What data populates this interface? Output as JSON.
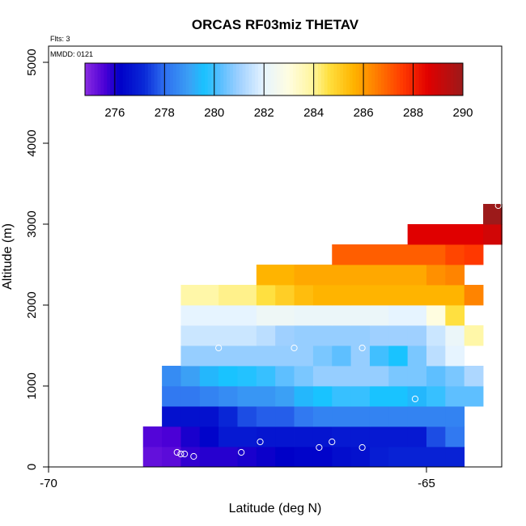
{
  "chart_data": {
    "type": "heatmap",
    "title": "ORCAS RF03miz THETAV",
    "annotations": {
      "flights": "Flts: 3",
      "date": "MMDD: 0121"
    },
    "xlabel": "Latitude (deg N)",
    "ylabel": "Altitude (m)",
    "xlim": [
      -70,
      -64
    ],
    "ylim": [
      0,
      5200
    ],
    "x_ticks": [
      -70,
      -65
    ],
    "y_ticks": [
      0,
      1000,
      2000,
      3000,
      4000,
      5000
    ],
    "colorbar": {
      "min": 274.8,
      "max": 290,
      "ticks": [
        276,
        278,
        280,
        282,
        284,
        286,
        288,
        290
      ],
      "stops": [
        [
          274.8,
          "#8a2be2"
        ],
        [
          275.6,
          "#4b00d6"
        ],
        [
          276.2,
          "#0000c8"
        ],
        [
          277.2,
          "#0a2ad8"
        ],
        [
          278.0,
          "#2e6ff0"
        ],
        [
          279.0,
          "#3ba0f5"
        ],
        [
          279.6,
          "#19c3ff"
        ],
        [
          280.2,
          "#55bdff"
        ],
        [
          281.0,
          "#9fd0ff"
        ],
        [
          282.0,
          "#e6f4ff"
        ],
        [
          283.0,
          "#fffde0"
        ],
        [
          284.0,
          "#fff59a"
        ],
        [
          284.6,
          "#ffe040"
        ],
        [
          285.6,
          "#ffb400"
        ],
        [
          286.6,
          "#ff7800"
        ],
        [
          287.6,
          "#ff3800"
        ],
        [
          288.6,
          "#e00000"
        ],
        [
          290.0,
          "#9c1a1a"
        ]
      ]
    },
    "lat_edges": [
      -66.97,
      -66.72,
      -66.47,
      -66.22,
      -65.97,
      -65.72,
      -65.47,
      -65.22,
      -64.97,
      -64.72,
      -64.47,
      -64.22,
      -68.72,
      -68.47,
      -68.22,
      -67.97,
      -67.72,
      -67.47,
      -67.22
    ],
    "rows": [
      {
        "alt": [
          0,
          250
        ],
        "start": -68.75,
        "values": [
          275.3,
          275.4,
          275.8,
          275.9,
          275.9,
          276.0,
          276.1,
          276.2,
          276.3,
          276.3,
          276.5,
          276.6,
          276.9,
          277.0,
          277.0,
          277.0,
          277.0
        ]
      },
      {
        "alt": [
          250,
          500
        ],
        "start": -68.75,
        "values": [
          275.5,
          275.6,
          276.0,
          276.3,
          276.8,
          276.8,
          276.7,
          276.7,
          276.7,
          276.7,
          276.8,
          276.8,
          276.8,
          276.8,
          276.8,
          277.6,
          278.2
        ]
      },
      {
        "alt": [
          500,
          750
        ],
        "start": -68.5,
        "values": [
          276.6,
          276.6,
          276.6,
          277.1,
          277.6,
          277.8,
          277.8,
          278.2,
          278.4,
          278.4,
          278.4,
          278.4,
          278.4,
          278.4,
          278.4,
          278.4
        ]
      },
      {
        "alt": [
          750,
          1000
        ],
        "start": -68.5,
        "values": [
          278.2,
          278.2,
          278.4,
          278.6,
          278.8,
          278.8,
          279.0,
          279.4,
          279.6,
          279.9,
          279.9,
          279.6,
          279.6,
          279.4,
          279.9,
          280.3,
          280.3
        ]
      },
      {
        "alt": [
          1000,
          1250
        ],
        "start": -68.5,
        "values": [
          278.6,
          279.0,
          279.4,
          279.6,
          279.7,
          279.9,
          280.3,
          280.6,
          280.9,
          280.9,
          280.9,
          280.9,
          280.6,
          280.6,
          280.3,
          280.6,
          281.2
        ]
      },
      {
        "alt": [
          1250,
          1500
        ],
        "start": -68.25,
        "values": [
          280.9,
          280.9,
          280.9,
          280.9,
          280.9,
          280.9,
          280.9,
          280.6,
          280.3,
          280.9,
          280.0,
          279.6,
          280.6,
          281.4,
          282.0
        ]
      },
      {
        "alt": [
          1500,
          1750
        ],
        "start": -68.25,
        "values": [
          281.6,
          281.6,
          281.6,
          281.6,
          281.4,
          281.0,
          280.9,
          280.9,
          280.9,
          280.9,
          281.0,
          281.0,
          281.0,
          281.6,
          282.2,
          283.8
        ]
      },
      {
        "alt": [
          1750,
          2000
        ],
        "start": -68.25,
        "values": [
          282.0,
          282.0,
          282.0,
          282.0,
          282.3,
          282.3,
          282.2,
          282.2,
          282.2,
          282.2,
          282.2,
          282.0,
          282.0,
          283.0,
          284.6
        ]
      },
      {
        "alt": [
          2000,
          2250
        ],
        "start": -68.25,
        "values": [
          283.8,
          283.8,
          284.1,
          284.1,
          284.6,
          285.0,
          285.4,
          285.6,
          285.6,
          285.6,
          285.6,
          285.6,
          285.6,
          285.6,
          285.6,
          286.4
        ]
      },
      {
        "alt": [
          2250,
          2500
        ],
        "start": -67.25,
        "values": [
          285.6,
          285.6,
          285.8,
          285.8,
          285.8,
          285.8,
          285.8,
          285.8,
          285.8,
          286.2,
          286.4
        ]
      },
      {
        "alt": [
          2500,
          2750
        ],
        "start": -66.25,
        "values": [
          287.0,
          287.0,
          287.0,
          287.0,
          287.0,
          287.0,
          287.4,
          287.6
        ]
      },
      {
        "alt": [
          2750,
          3000
        ],
        "start": -65.25,
        "values": [
          288.6,
          288.6,
          288.6,
          288.6,
          288.9
        ]
      },
      {
        "alt": [
          3000,
          3250
        ],
        "start": -64.25,
        "values": [
          290.0
        ]
      }
    ],
    "points": [
      [
        -68.95,
        160
      ],
      [
        -68.9,
        160
      ],
      [
        -68.94,
        300
      ],
      [
        -68.85,
        1300
      ],
      [
        -68.68,
        1470
      ],
      [
        -68.3,
        180
      ],
      [
        -68.25,
        160
      ],
      [
        -68.2,
        160
      ],
      [
        -68.08,
        130
      ],
      [
        -67.45,
        180
      ],
      [
        -67.75,
        1470
      ],
      [
        -67.2,
        310
      ],
      [
        -66.75,
        1470
      ],
      [
        -66.42,
        240
      ],
      [
        -66.25,
        310
      ],
      [
        -65.85,
        1470
      ],
      [
        -65.85,
        240
      ],
      [
        -65.15,
        840
      ],
      [
        -64.05,
        3230
      ]
    ]
  }
}
